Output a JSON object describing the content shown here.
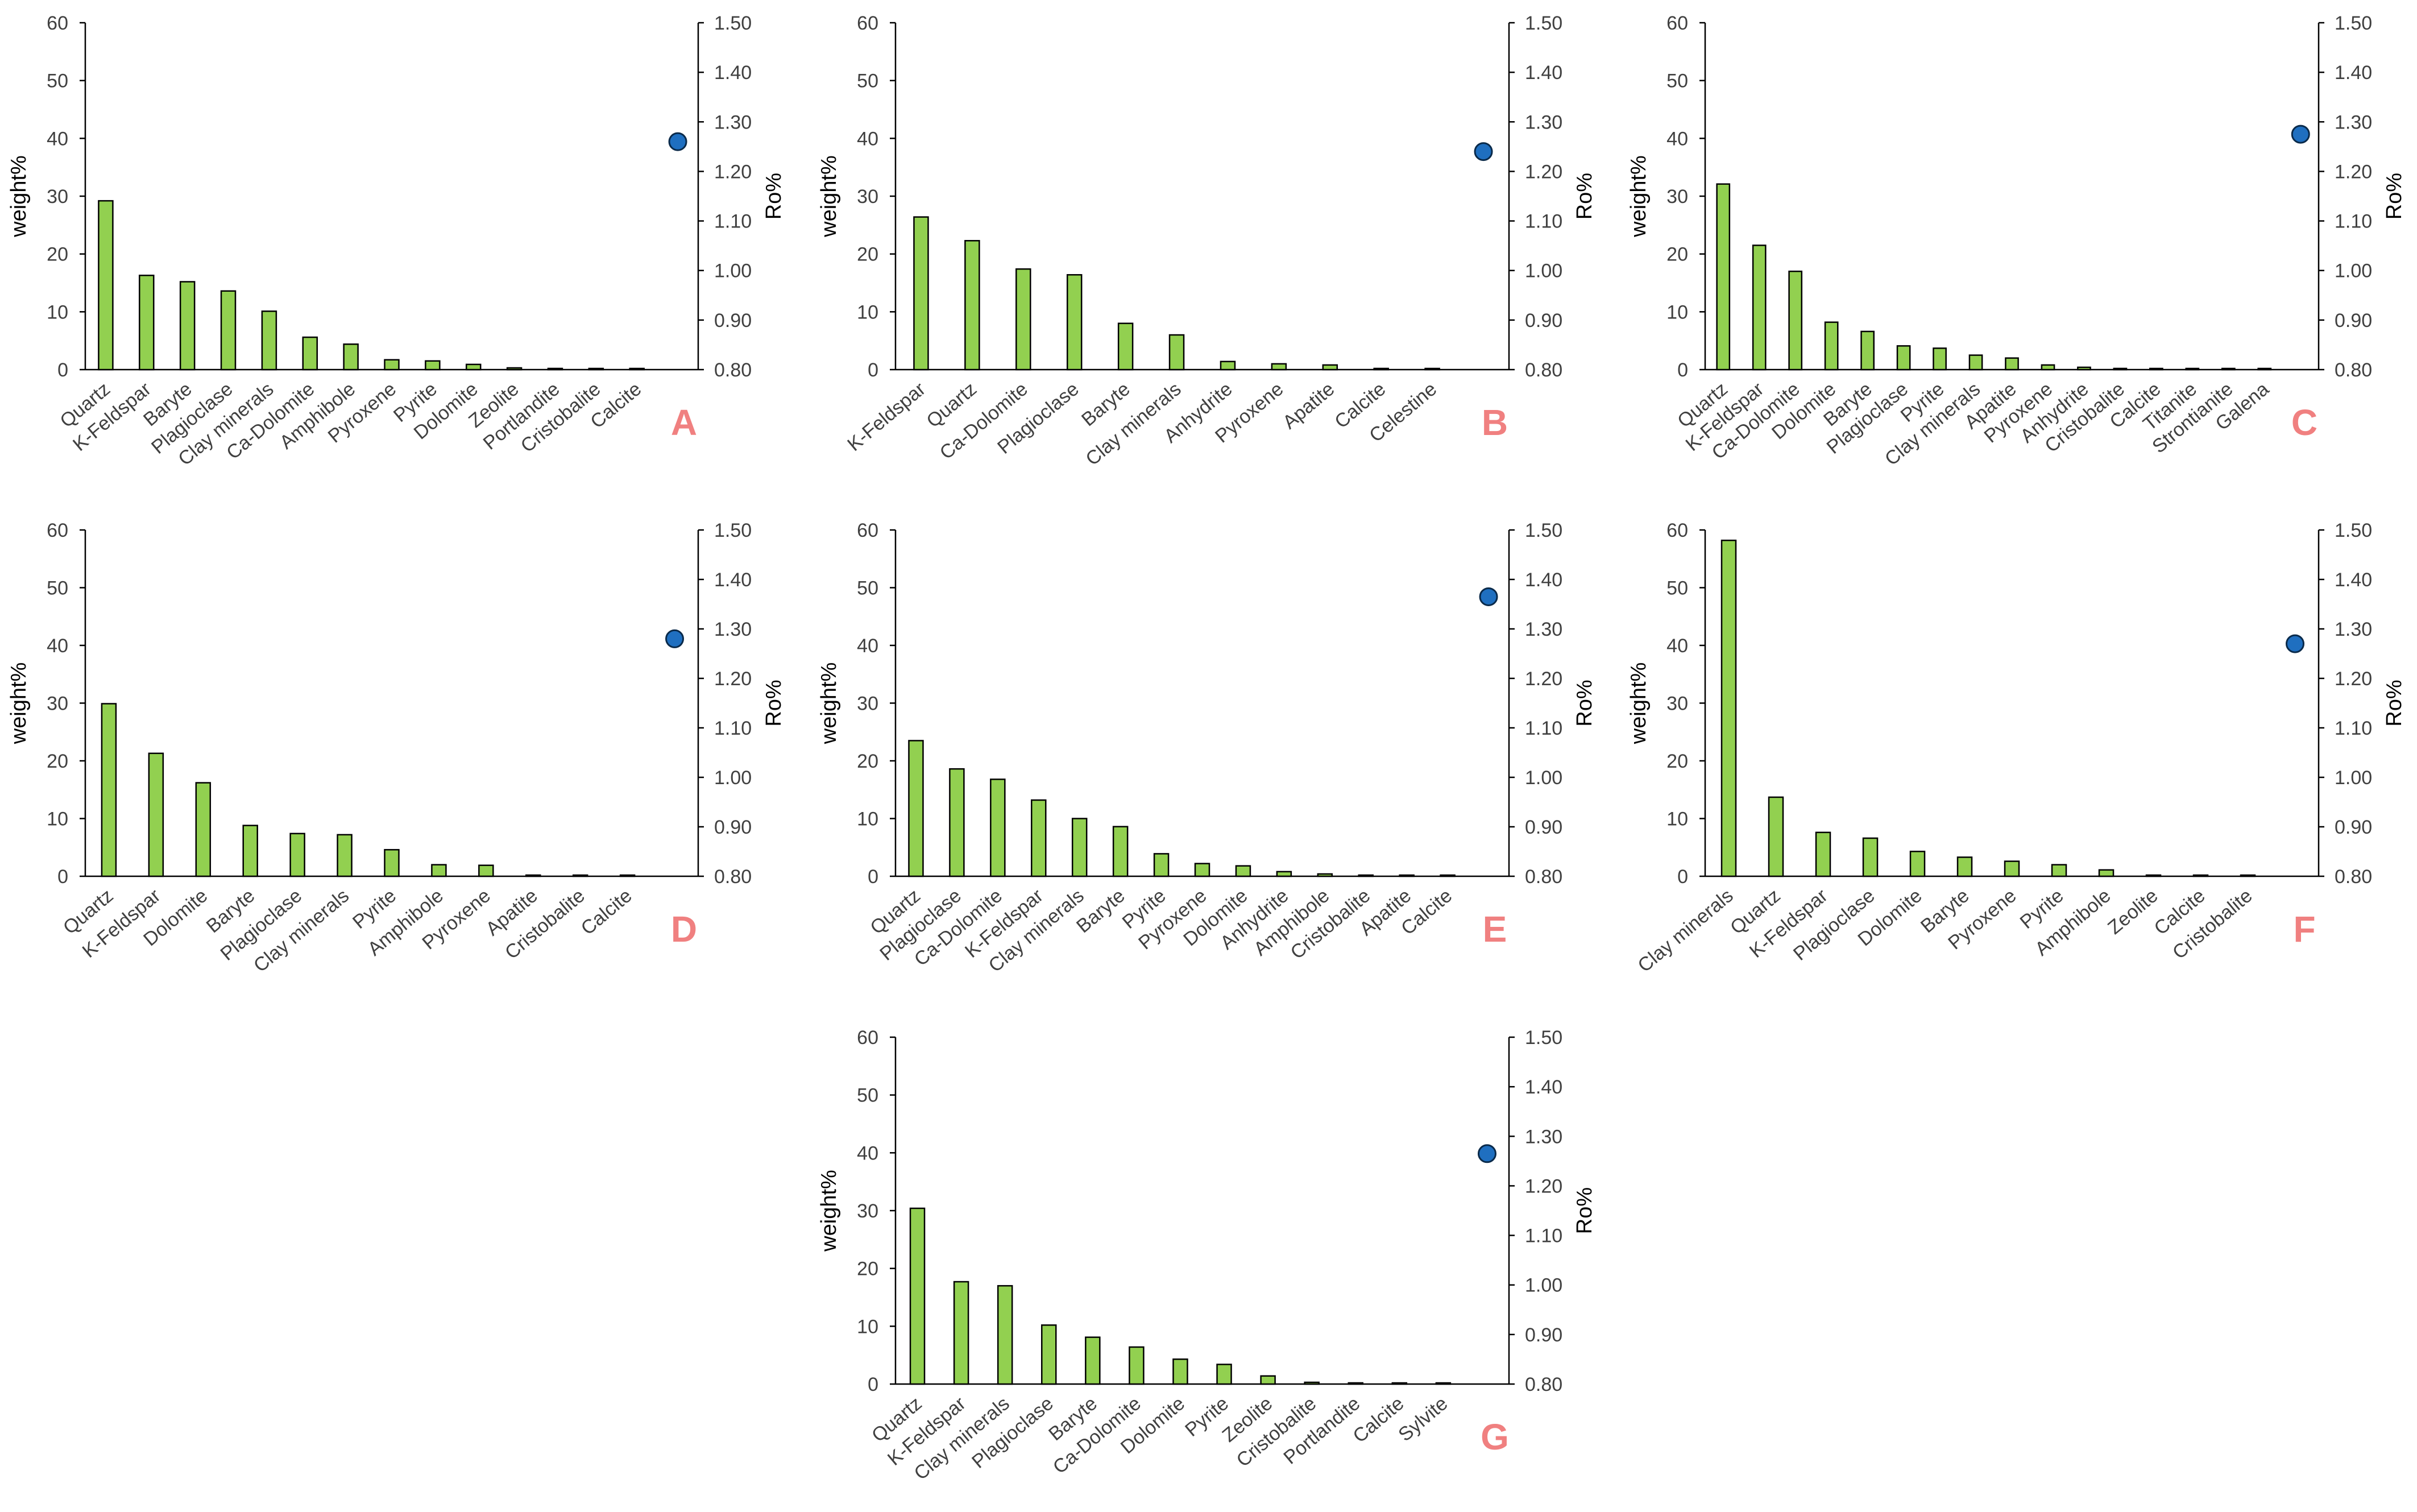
{
  "figure": {
    "colors": {
      "bar": "#92d050",
      "bar_edge": "#000000",
      "point": "#1f6fc0",
      "point_edge": "#0a2a4a",
      "panel_letter": "#f08080",
      "axis": "#000000",
      "text": "#404040"
    }
  },
  "chart_data": [
    {
      "type": "bar",
      "panel": "A",
      "categories": [
        "Quartz",
        "K-Feldspar",
        "Baryte",
        "Plagioclase",
        "Clay minerals",
        "Ca-Dolomite",
        "Amphibole",
        "Pyroxene",
        "Pyrite",
        "Dolomite",
        "Zeolite",
        "Portlandite",
        "Cristobalite",
        "Calcite"
      ],
      "values": [
        29.2,
        16.3,
        15.2,
        13.6,
        10.1,
        5.6,
        4.4,
        1.7,
        1.5,
        0.9,
        0.3,
        0.2,
        0.1,
        0.1
      ],
      "ylabel": "weight%",
      "y2label": "Ro%",
      "ylim": [
        0,
        60
      ],
      "yticks": [
        "0",
        "10",
        "20",
        "30",
        "40",
        "50",
        "60"
      ],
      "y2lim": [
        0.8,
        1.5
      ],
      "y2ticks": [
        "0.80",
        "0.90",
        "1.00",
        "1.10",
        "1.20",
        "1.30",
        "1.40",
        "1.50"
      ],
      "ro": 1.26
    },
    {
      "type": "bar",
      "panel": "B",
      "categories": [
        "K-Feldspar",
        "Quartz",
        "Ca-Dolomite",
        "Plagioclase",
        "Baryte",
        "Clay minerals",
        "Anhydrite",
        "Pyroxene",
        "Apatite",
        "Calcite",
        "Celestine"
      ],
      "values": [
        26.4,
        22.3,
        17.4,
        16.4,
        8.0,
        6.0,
        1.4,
        1.0,
        0.8,
        0.2,
        0.1
      ],
      "ylabel": "weight%",
      "y2label": "Ro%",
      "ylim": [
        0,
        60
      ],
      "yticks": [
        "0",
        "10",
        "20",
        "30",
        "40",
        "50",
        "60"
      ],
      "y2lim": [
        0.8,
        1.5
      ],
      "y2ticks": [
        "0.80",
        "0.90",
        "1.00",
        "1.10",
        "1.20",
        "1.30",
        "1.40",
        "1.50"
      ],
      "ro": 1.24
    },
    {
      "type": "bar",
      "panel": "C",
      "categories": [
        "Quartz",
        "K-Feldspar",
        "Ca-Dolomite",
        "Dolomite",
        "Baryte",
        "Plagioclase",
        "Pyrite",
        "Clay minerals",
        "Apatite",
        "Pyroxene",
        "Anhydrite",
        "Cristobalite",
        "Calcite",
        "Titanite",
        "Strontianite",
        "Galena"
      ],
      "values": [
        32.1,
        21.5,
        17.0,
        8.2,
        6.6,
        4.1,
        3.7,
        2.5,
        2.0,
        0.8,
        0.4,
        0.2,
        0.1,
        0.1,
        0.1,
        0.1
      ],
      "ylabel": "weight%",
      "y2label": "Ro%",
      "ylim": [
        0,
        60
      ],
      "yticks": [
        "0",
        "10",
        "20",
        "30",
        "40",
        "50",
        "60"
      ],
      "y2lim": [
        0.8,
        1.5
      ],
      "y2ticks": [
        "0.80",
        "0.90",
        "1.00",
        "1.10",
        "1.20",
        "1.30",
        "1.40",
        "1.50"
      ],
      "ro": 1.275
    },
    {
      "type": "bar",
      "panel": "D",
      "categories": [
        "Quartz",
        "K-Feldspar",
        "Dolomite",
        "Baryte",
        "Plagioclase",
        "Clay minerals",
        "Pyrite",
        "Amphibole",
        "Pyroxene",
        "Apatite",
        "Cristobalite",
        "Calcite"
      ],
      "values": [
        29.9,
        21.3,
        16.2,
        8.8,
        7.4,
        7.2,
        4.6,
        2.0,
        1.9,
        0.2,
        0.1,
        0.1
      ],
      "ylabel": "weight%",
      "y2label": "Ro%",
      "ylim": [
        0,
        60
      ],
      "yticks": [
        "0",
        "10",
        "20",
        "30",
        "40",
        "50",
        "60"
      ],
      "y2lim": [
        0.8,
        1.5
      ],
      "y2ticks": [
        "0.80",
        "0.90",
        "1.00",
        "1.10",
        "1.20",
        "1.30",
        "1.40",
        "1.50"
      ],
      "ro": 1.28
    },
    {
      "type": "bar",
      "panel": "E",
      "categories": [
        "Quartz",
        "Plagioclase",
        "Ca-Dolomite",
        "K-Feldspar",
        "Clay minerals",
        "Baryte",
        "Pyrite",
        "Pyroxene",
        "Dolomite",
        "Anhydrite",
        "Amphibole",
        "Cristobalite",
        "Apatite",
        "Calcite"
      ],
      "values": [
        23.5,
        18.6,
        16.8,
        13.2,
        10.0,
        8.6,
        3.9,
        2.2,
        1.8,
        0.8,
        0.4,
        0.2,
        0.1,
        0.1
      ],
      "ylabel": "weight%",
      "y2label": "Ro%",
      "ylim": [
        0,
        60
      ],
      "yticks": [
        "0",
        "10",
        "20",
        "30",
        "40",
        "50",
        "60"
      ],
      "y2lim": [
        0.8,
        1.5
      ],
      "y2ticks": [
        "0.80",
        "0.90",
        "1.00",
        "1.10",
        "1.20",
        "1.30",
        "1.40",
        "1.50"
      ],
      "ro": 1.365
    },
    {
      "type": "bar",
      "panel": "F",
      "categories": [
        "Clay minerals",
        "Quartz",
        "K-Feldspar",
        "Plagioclase",
        "Dolomite",
        "Baryte",
        "Pyroxene",
        "Pyrite",
        "Amphibole",
        "Zeolite",
        "Calcite",
        "Cristobalite"
      ],
      "values": [
        58.2,
        13.7,
        7.6,
        6.6,
        4.3,
        3.3,
        2.6,
        2.0,
        1.1,
        0.2,
        0.1,
        0.1
      ],
      "ylabel": "weight%",
      "y2label": "Ro%",
      "ylim": [
        0,
        60
      ],
      "yticks": [
        "0",
        "10",
        "20",
        "30",
        "40",
        "50",
        "60"
      ],
      "y2lim": [
        0.8,
        1.5
      ],
      "y2ticks": [
        "0.80",
        "0.90",
        "1.00",
        "1.10",
        "1.20",
        "1.30",
        "1.40",
        "1.50"
      ],
      "ro": 1.27
    },
    {
      "type": "bar",
      "panel": "G",
      "categories": [
        "Quartz",
        "K-Feldspar",
        "Clay minerals",
        "Plagioclase",
        "Baryte",
        "Ca-Dolomite",
        "Dolomite",
        "Pyrite",
        "Zeolite",
        "Cristobalite",
        "Portlandite",
        "Calcite",
        "Sylvite"
      ],
      "values": [
        30.4,
        17.7,
        17.0,
        10.2,
        8.1,
        6.4,
        4.3,
        3.4,
        1.4,
        0.3,
        0.2,
        0.1,
        0.1
      ],
      "ylabel": "weight%",
      "y2label": "Ro%",
      "ylim": [
        0,
        60
      ],
      "yticks": [
        "0",
        "10",
        "20",
        "30",
        "40",
        "50",
        "60"
      ],
      "y2lim": [
        0.8,
        1.5
      ],
      "y2ticks": [
        "0.80",
        "0.90",
        "1.00",
        "1.10",
        "1.20",
        "1.30",
        "1.40",
        "1.50"
      ],
      "ro": 1.265
    }
  ]
}
